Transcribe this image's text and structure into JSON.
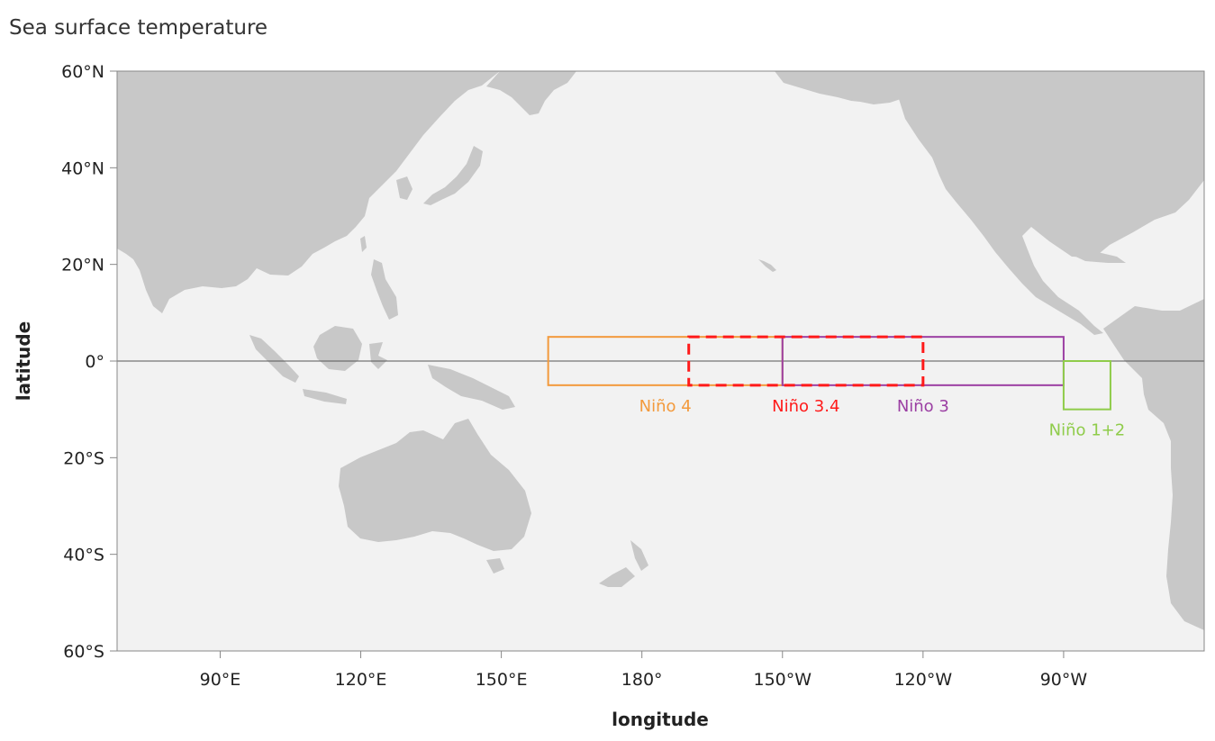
{
  "title": "Sea surface temperature",
  "axes": {
    "xlabel": "longitude",
    "ylabel": "latitude",
    "lon_range_east": [
      68,
      300
    ],
    "lat_range": [
      -60,
      60
    ],
    "x_ticks": [
      {
        "lon": 90,
        "label": "90°E"
      },
      {
        "lon": 120,
        "label": "120°E"
      },
      {
        "lon": 150,
        "label": "150°E"
      },
      {
        "lon": 180,
        "label": "180°"
      },
      {
        "lon": 210,
        "label": "150°W"
      },
      {
        "lon": 240,
        "label": "120°W"
      },
      {
        "lon": 270,
        "label": "90°W"
      }
    ],
    "y_ticks": [
      {
        "lat": 60,
        "label": "60°N"
      },
      {
        "lat": 40,
        "label": "40°N"
      },
      {
        "lat": 20,
        "label": "20°N"
      },
      {
        "lat": 0,
        "label": "0°"
      },
      {
        "lat": -20,
        "label": "20°S"
      },
      {
        "lat": -40,
        "label": "40°S"
      },
      {
        "lat": -60,
        "label": "60°S"
      }
    ]
  },
  "colors": {
    "ocean": "#f2f2f2",
    "land": "#c8c8c8",
    "equator": "#555555",
    "nino4": "#f39a3c",
    "nino34": "#ff1a1a",
    "nino3": "#9b3fa3",
    "nino12": "#8fcc4a"
  },
  "regions": [
    {
      "id": "nino4",
      "label": "Niño 4",
      "lon": [
        160,
        210
      ],
      "lat": [
        -5,
        5
      ],
      "color": "#f39a3c",
      "dashed": false
    },
    {
      "id": "nino3",
      "label": "Niño 3",
      "lon": [
        210,
        270
      ],
      "lat": [
        -5,
        5
      ],
      "color": "#9b3fa3",
      "dashed": false
    },
    {
      "id": "nino12",
      "label": "Niño 1+2",
      "lon": [
        270,
        280
      ],
      "lat": [
        -10,
        0
      ],
      "color": "#8fcc4a",
      "dashed": false
    },
    {
      "id": "nino34",
      "label": "Niño 3.4",
      "lon": [
        190,
        240
      ],
      "lat": [
        -5,
        5
      ],
      "color": "#ff1a1a",
      "dashed": true
    }
  ]
}
